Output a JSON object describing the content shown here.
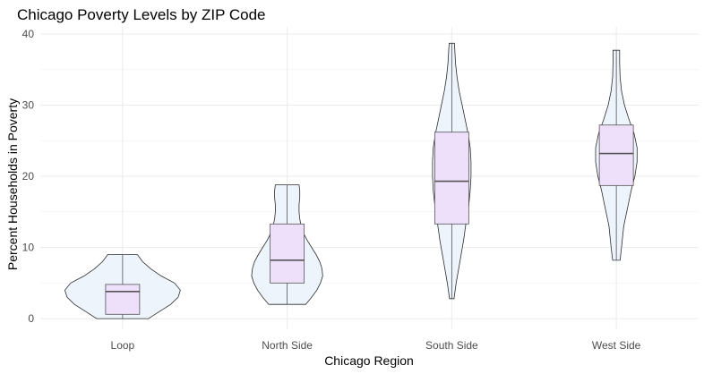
{
  "chart_data": {
    "type": "violin",
    "title": "Chicago Poverty Levels by ZIP Code",
    "xlabel": "Chicago Region",
    "ylabel": "Percent Households in Poverty",
    "ylim": [
      -1.5,
      41
    ],
    "yticks": [
      0,
      10,
      20,
      30,
      40
    ],
    "grid": true,
    "categories": [
      "Loop",
      "North Side",
      "South Side",
      "West Side"
    ],
    "colors": {
      "violin_fill": "#eef4fc",
      "box_fill": "#eedffa",
      "outline": "#2b2b2b"
    },
    "groups": [
      {
        "name": "Loop",
        "min": 0,
        "q1": 0.6,
        "median": 3.8,
        "q3": 4.8,
        "max": 9,
        "density": [
          [
            0,
            0.35
          ],
          [
            1,
            0.5
          ],
          [
            2,
            0.65
          ],
          [
            3,
            0.75
          ],
          [
            4,
            0.78
          ],
          [
            5,
            0.7
          ],
          [
            6,
            0.52
          ],
          [
            7,
            0.38
          ],
          [
            8,
            0.27
          ],
          [
            9,
            0.2
          ]
        ]
      },
      {
        "name": "North Side",
        "min": 2,
        "q1": 5,
        "median": 8.2,
        "q3": 13.3,
        "max": 18.8,
        "density": [
          [
            2,
            0.25
          ],
          [
            3,
            0.33
          ],
          [
            4,
            0.4
          ],
          [
            5,
            0.45
          ],
          [
            6,
            0.48
          ],
          [
            7,
            0.47
          ],
          [
            8,
            0.44
          ],
          [
            9,
            0.39
          ],
          [
            10,
            0.33
          ],
          [
            11,
            0.27
          ],
          [
            12,
            0.22
          ],
          [
            13,
            0.19
          ],
          [
            14,
            0.17
          ],
          [
            15,
            0.16
          ],
          [
            16,
            0.16
          ],
          [
            17,
            0.17
          ],
          [
            18,
            0.17
          ],
          [
            18.8,
            0.16
          ]
        ]
      },
      {
        "name": "South Side",
        "min": 2.8,
        "q1": 13.3,
        "median": 19.3,
        "q3": 26.2,
        "max": 38.7,
        "density": [
          [
            2.8,
            0.03
          ],
          [
            5,
            0.06
          ],
          [
            8,
            0.11
          ],
          [
            11,
            0.16
          ],
          [
            14,
            0.2
          ],
          [
            16,
            0.23
          ],
          [
            18,
            0.25
          ],
          [
            20,
            0.26
          ],
          [
            22,
            0.26
          ],
          [
            24,
            0.25
          ],
          [
            26,
            0.22
          ],
          [
            28,
            0.18
          ],
          [
            30,
            0.14
          ],
          [
            32,
            0.1
          ],
          [
            34,
            0.07
          ],
          [
            36,
            0.05
          ],
          [
            38,
            0.04
          ],
          [
            38.7,
            0.035
          ]
        ]
      },
      {
        "name": "West Side",
        "min": 8.2,
        "q1": 18.7,
        "median": 23.2,
        "q3": 27.2,
        "max": 37.7,
        "density": [
          [
            8.2,
            0.05
          ],
          [
            10,
            0.07
          ],
          [
            13,
            0.1
          ],
          [
            16,
            0.16
          ],
          [
            18,
            0.2
          ],
          [
            20,
            0.25
          ],
          [
            22,
            0.28
          ],
          [
            24,
            0.28
          ],
          [
            26,
            0.24
          ],
          [
            28,
            0.17
          ],
          [
            30,
            0.11
          ],
          [
            32,
            0.07
          ],
          [
            34,
            0.05
          ],
          [
            36,
            0.045
          ],
          [
            37.7,
            0.045
          ]
        ]
      }
    ]
  }
}
